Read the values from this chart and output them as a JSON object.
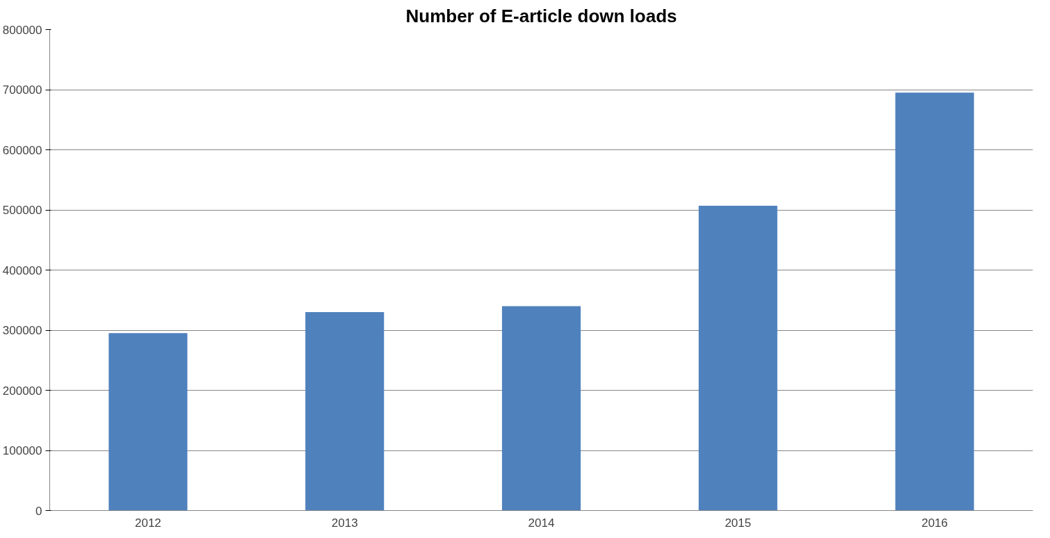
{
  "chart_data": {
    "type": "bar",
    "title": "Number of E-article down loads",
    "categories": [
      "2012",
      "2013",
      "2014",
      "2015",
      "2016"
    ],
    "values": [
      295000,
      330000,
      340000,
      507000,
      695000
    ],
    "color": "#4f81bd",
    "ylim": [
      0,
      800000
    ],
    "yticks": [
      0,
      100000,
      200000,
      300000,
      400000,
      500000,
      600000,
      700000,
      800000
    ],
    "grid": "y"
  }
}
